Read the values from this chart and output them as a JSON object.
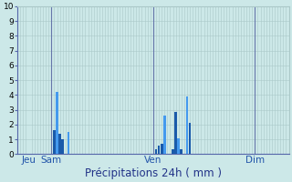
{
  "title": "Précipitations 24h ( mm )",
  "background_color": "#cce8e8",
  "grid_color": "#aac8c8",
  "ylim": [
    0,
    10
  ],
  "yticks": [
    0,
    1,
    2,
    3,
    4,
    5,
    6,
    7,
    8,
    9,
    10
  ],
  "n_cols": 96,
  "xtick_positions": [
    4,
    12,
    48,
    84
  ],
  "xtick_labels": [
    "Jeu",
    "Sam",
    "Ven",
    "Dim"
  ],
  "vlines": [
    12,
    48,
    84
  ],
  "bars": [
    {
      "x": 13,
      "height": 1.6,
      "color": "#1a5aaa"
    },
    {
      "x": 14,
      "height": 4.2,
      "color": "#4499ee"
    },
    {
      "x": 15,
      "height": 1.4,
      "color": "#1a5aaa"
    },
    {
      "x": 16,
      "height": 1.0,
      "color": "#1a5aaa"
    },
    {
      "x": 18,
      "height": 1.5,
      "color": "#4499ee"
    },
    {
      "x": 49,
      "height": 0.3,
      "color": "#1a5aaa"
    },
    {
      "x": 50,
      "height": 0.6,
      "color": "#1a5aaa"
    },
    {
      "x": 51,
      "height": 0.7,
      "color": "#1a5aaa"
    },
    {
      "x": 52,
      "height": 2.6,
      "color": "#4499ee"
    },
    {
      "x": 55,
      "height": 0.3,
      "color": "#1a5aaa"
    },
    {
      "x": 56,
      "height": 2.85,
      "color": "#1a5aaa"
    },
    {
      "x": 57,
      "height": 1.05,
      "color": "#4499ee"
    },
    {
      "x": 58,
      "height": 0.35,
      "color": "#1a5aaa"
    },
    {
      "x": 60,
      "height": 3.9,
      "color": "#4499ee"
    },
    {
      "x": 61,
      "height": 2.1,
      "color": "#1a5aaa"
    }
  ],
  "ylabel_color": "#555577",
  "xlabel_color": "#223388",
  "xtick_color": "#2255aa",
  "ytick_color": "#333333",
  "spine_color": "#5566aa",
  "vline_color": "#6677aa",
  "xlabel_fontsize": 8.5,
  "ytick_fontsize": 6.5,
  "xtick_fontsize": 7.5
}
